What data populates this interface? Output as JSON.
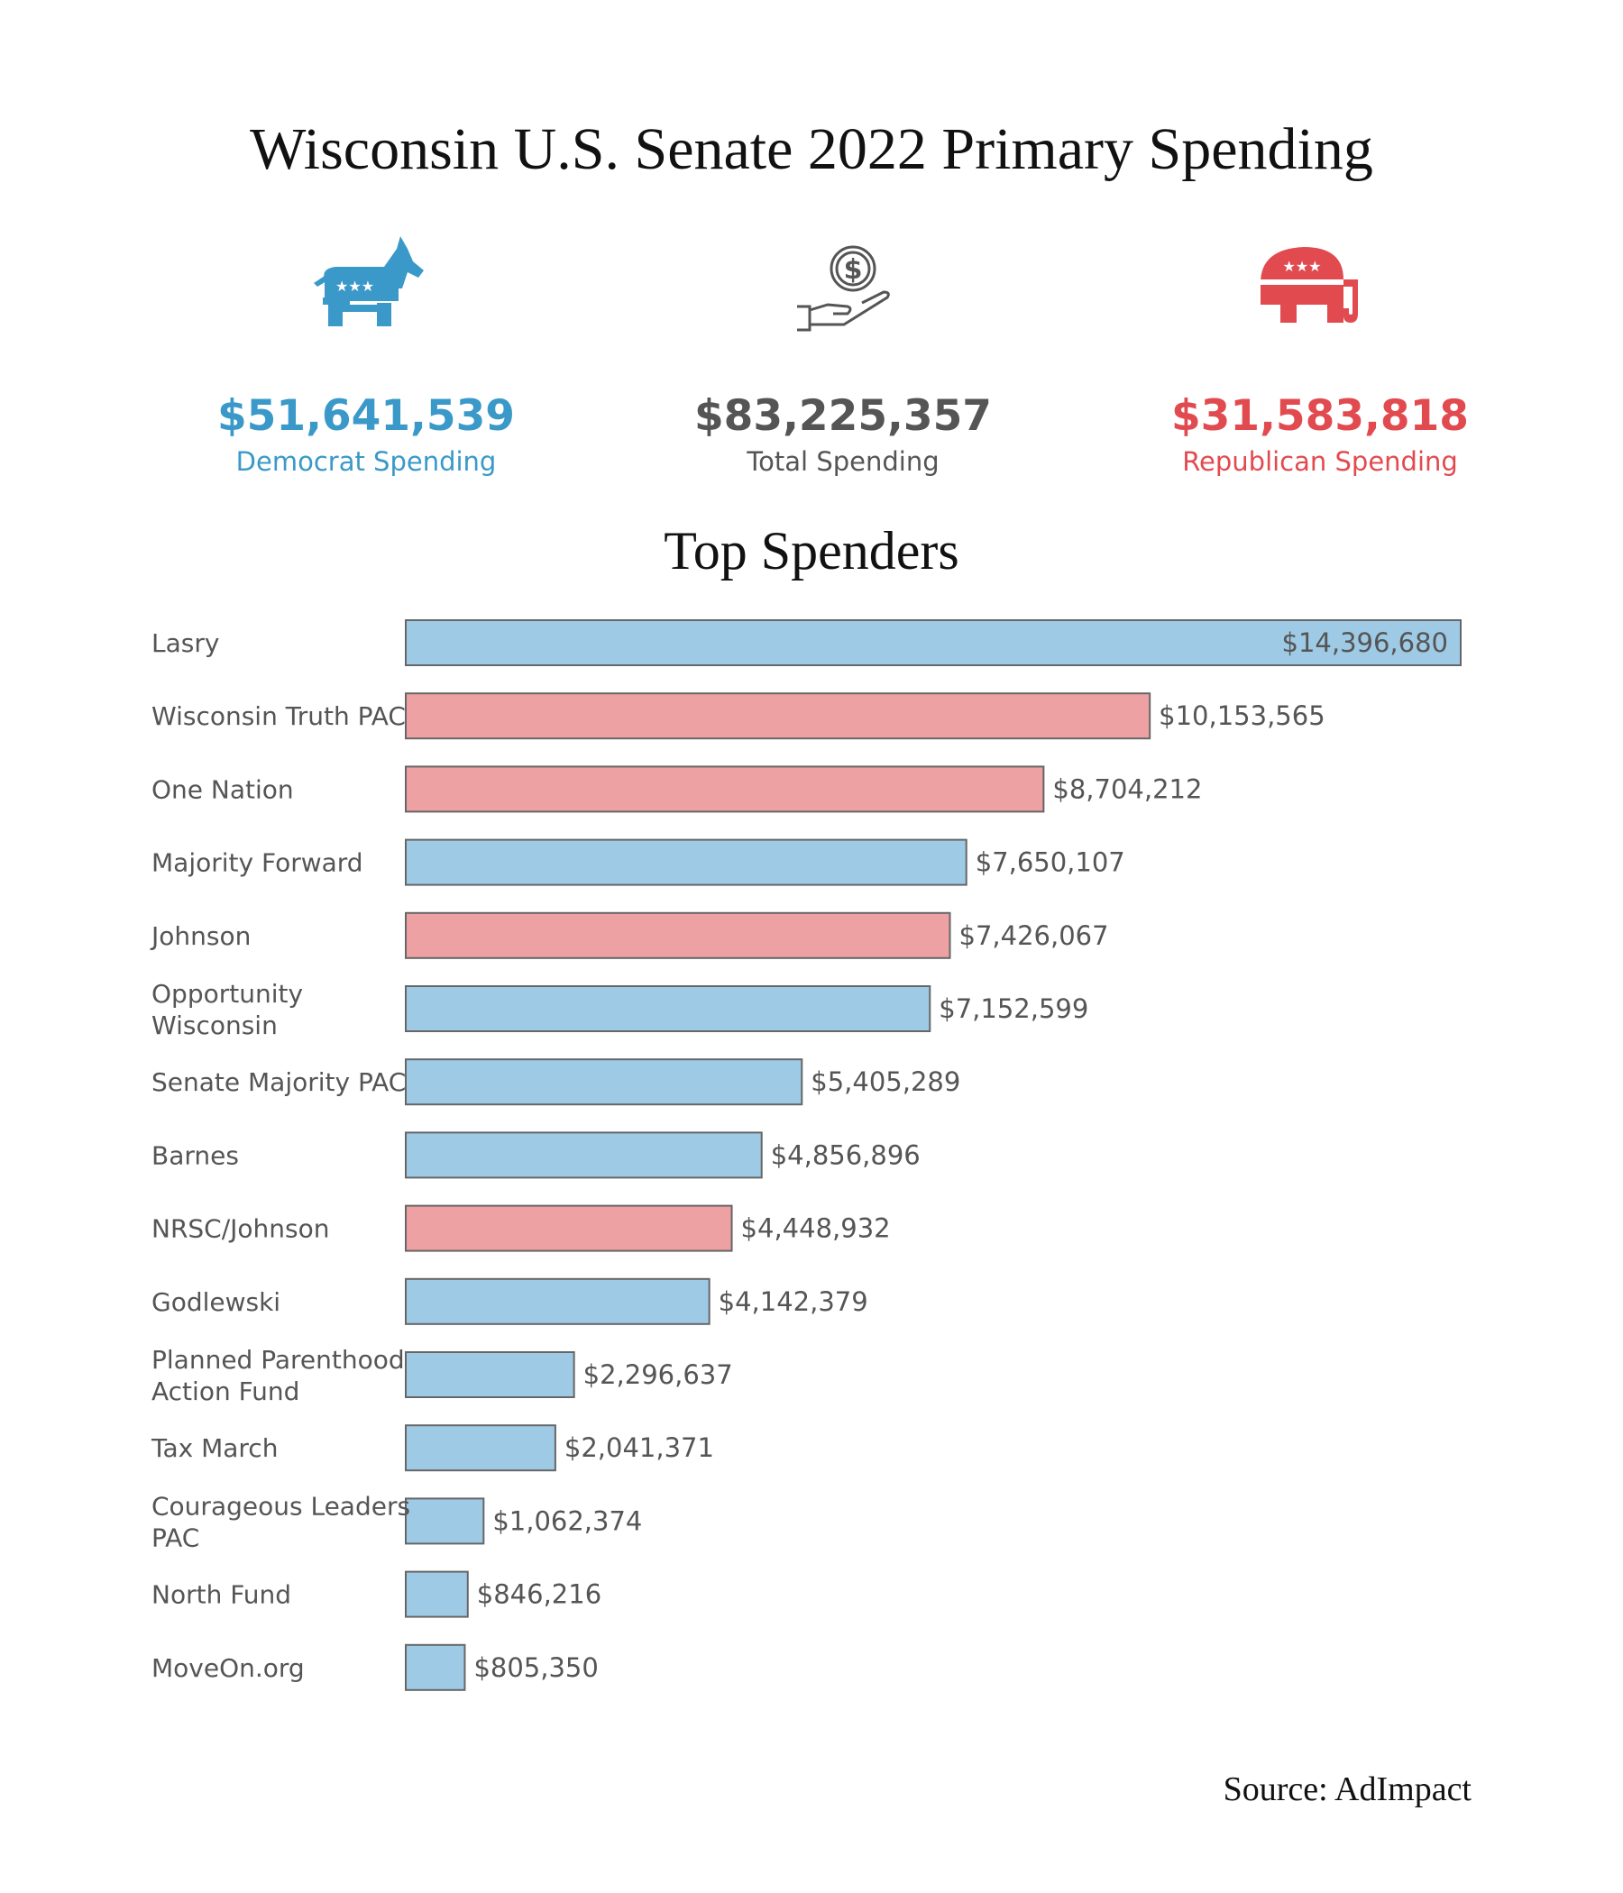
{
  "title": "Wisconsin U.S. Senate 2022 Primary Spending",
  "summary": {
    "democrat": {
      "amount": "$51,641,539",
      "label": "Democrat Spending",
      "color": "#3a99c8",
      "icon": "donkey-icon"
    },
    "total": {
      "amount": "$83,225,357",
      "label": "Total Spending",
      "color": "#555555",
      "icon": "hand-coin-icon"
    },
    "republican": {
      "amount": "$31,583,818",
      "label": "Republican Spending",
      "color": "#e14b50",
      "icon": "elephant-icon"
    }
  },
  "subtitle": "Top Spenders",
  "source": "Source: AdImpact",
  "colors": {
    "democrat_bar": "#9ecae5",
    "republican_bar": "#eda1a3",
    "bar_border": "#666666",
    "label_text": "#555555"
  },
  "chart_data": {
    "type": "bar",
    "orientation": "horizontal",
    "title": "Top Spenders",
    "xlim": [
      0,
      14396680
    ],
    "grid": false,
    "categories": [
      "Lasry",
      "Wisconsin Truth PAC",
      "One Nation",
      "Majority Forward",
      "Johnson",
      "Opportunity Wisconsin",
      "Senate Majority PAC",
      "Barnes",
      "NRSC/Johnson",
      "Godlewski",
      "Planned Parenthood Action Fund",
      "Tax March",
      "Courageous Leaders PAC",
      "North Fund",
      "MoveOn.org"
    ],
    "label_lines": [
      [
        "Lasry"
      ],
      [
        "Wisconsin Truth PAC"
      ],
      [
        "One Nation"
      ],
      [
        "Majority Forward"
      ],
      [
        "Johnson"
      ],
      [
        "Opportunity",
        "Wisconsin"
      ],
      [
        "Senate Majority PAC"
      ],
      [
        "Barnes"
      ],
      [
        "NRSC/Johnson"
      ],
      [
        "Godlewski"
      ],
      [
        "Planned Parenthood",
        "Action Fund"
      ],
      [
        "Tax March"
      ],
      [
        "Courageous Leaders",
        "PAC"
      ],
      [
        "North Fund"
      ],
      [
        "MoveOn.org"
      ]
    ],
    "values": [
      14396680,
      10153565,
      8704212,
      7650107,
      7426067,
      7152599,
      5405289,
      4856896,
      4448932,
      4142379,
      2296637,
      2041371,
      1062374,
      846216,
      805350
    ],
    "value_labels": [
      "$14,396,680",
      "$10,153,565",
      "$8,704,212",
      "$7,650,107",
      "$7,426,067",
      "$7,152,599",
      "$5,405,289",
      "$4,856,896",
      "$4,448,932",
      "$4,142,379",
      "$2,296,637",
      "$2,041,371",
      "$1,062,374",
      "$846,216",
      "$805,350"
    ],
    "party": [
      "D",
      "R",
      "R",
      "D",
      "R",
      "D",
      "D",
      "D",
      "R",
      "D",
      "D",
      "D",
      "D",
      "D",
      "D"
    ]
  }
}
